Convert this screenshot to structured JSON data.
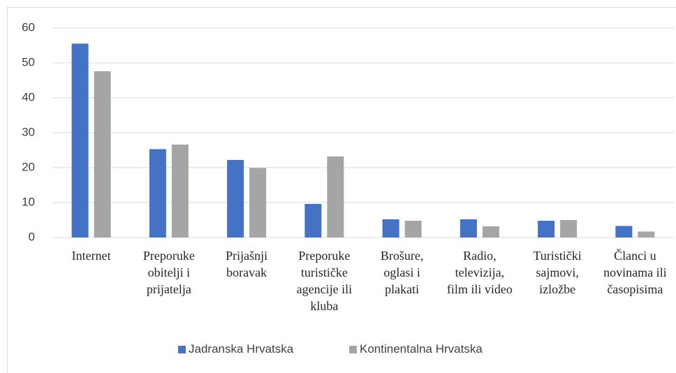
{
  "chart_data": {
    "type": "bar",
    "categories": [
      "Internet",
      "Preporuke obitelji i prijatelja",
      "Prijašnji boravak",
      "Preporuke turističke agencije ili kluba",
      "Brošure, oglasi i plakati",
      "Radio, televizija, film ili video",
      "Turistički sajmovi, izložbe",
      "Članci u novinama ili časopisima"
    ],
    "series": [
      {
        "name": "Jadranska Hrvatska",
        "color": "#4472c4",
        "values": [
          55.5,
          25.3,
          22.2,
          9.6,
          5.2,
          5.2,
          4.8,
          3.3
        ]
      },
      {
        "name": "Kontinentalna Hrvatska",
        "color": "#a5a5a5",
        "values": [
          47.6,
          26.6,
          19.9,
          23.2,
          4.8,
          3.2,
          5.0,
          1.7
        ]
      }
    ],
    "ylim": [
      0,
      60
    ],
    "yticks": [
      0,
      10,
      20,
      30,
      40,
      50,
      60
    ],
    "grid": true,
    "legend": "bottom"
  }
}
